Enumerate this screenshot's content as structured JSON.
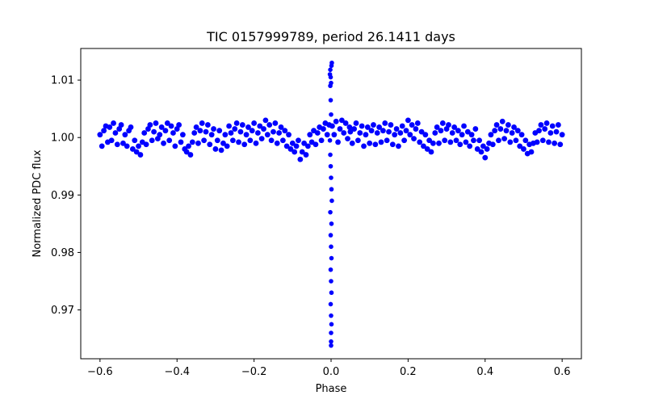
{
  "chart_data": {
    "type": "scatter",
    "title": "TIC 0157999789, period 26.1411 days",
    "xlabel": "Phase",
    "ylabel": "Normalized PDC flux",
    "xlim": [
      -0.65,
      0.65
    ],
    "ylim": [
      0.9615,
      1.0155
    ],
    "xticks": [
      -0.6,
      -0.4,
      -0.2,
      0.0,
      0.2,
      0.4,
      0.6
    ],
    "xtick_labels": [
      "−0.6",
      "−0.4",
      "−0.2",
      "0.0",
      "0.2",
      "0.4",
      "0.6"
    ],
    "yticks": [
      0.97,
      0.98,
      0.99,
      1.0,
      1.01
    ],
    "ytick_labels": [
      "0.97",
      "0.98",
      "0.99",
      "1.00",
      "1.01"
    ],
    "grid": false,
    "legend": "none",
    "marker_color": "#0000ff",
    "series": [
      {
        "points": [
          [
            -0.6,
            1.0005
          ],
          [
            -0.595,
            0.9985
          ],
          [
            -0.59,
            1.0012
          ],
          [
            -0.585,
            1.002
          ],
          [
            -0.58,
            0.9992
          ],
          [
            -0.575,
            1.0018
          ],
          [
            -0.57,
            0.9995
          ],
          [
            -0.565,
            1.0025
          ],
          [
            -0.56,
            1.0008
          ],
          [
            -0.555,
            0.9988
          ],
          [
            -0.55,
            1.0015
          ],
          [
            -0.545,
            1.0022
          ],
          [
            -0.54,
            0.999
          ],
          [
            -0.535,
            1.0005
          ],
          [
            -0.53,
            0.9985
          ],
          [
            -0.525,
            1.0012
          ],
          [
            -0.52,
            1.0018
          ],
          [
            -0.515,
            0.998
          ],
          [
            -0.51,
            0.9995
          ],
          [
            -0.505,
            0.9975
          ],
          [
            -0.5,
            0.9985
          ],
          [
            -0.495,
            0.997
          ],
          [
            -0.49,
            0.9992
          ],
          [
            -0.485,
            1.0008
          ],
          [
            -0.48,
            0.9988
          ],
          [
            -0.475,
            1.0015
          ],
          [
            -0.47,
            1.0022
          ],
          [
            -0.465,
            0.9995
          ],
          [
            -0.46,
            1.001
          ],
          [
            -0.455,
            1.0025
          ],
          [
            -0.45,
            0.9998
          ],
          [
            -0.445,
            1.0005
          ],
          [
            -0.44,
            1.0018
          ],
          [
            -0.435,
            0.999
          ],
          [
            -0.43,
            1.0012
          ],
          [
            -0.425,
            1.0025
          ],
          [
            -0.42,
            0.9995
          ],
          [
            -0.415,
            1.002
          ],
          [
            -0.41,
            1.0008
          ],
          [
            -0.405,
            0.9985
          ],
          [
            -0.4,
            1.0015
          ],
          [
            -0.395,
            1.0022
          ],
          [
            -0.39,
            0.9992
          ],
          [
            -0.385,
            1.0005
          ],
          [
            -0.38,
            0.998
          ],
          [
            -0.375,
            0.9975
          ],
          [
            -0.37,
            0.9985
          ],
          [
            -0.365,
            0.997
          ],
          [
            -0.36,
            0.9992
          ],
          [
            -0.355,
            1.0008
          ],
          [
            -0.35,
            1.0018
          ],
          [
            -0.345,
            0.999
          ],
          [
            -0.34,
            1.0012
          ],
          [
            -0.335,
            1.0025
          ],
          [
            -0.33,
            0.9995
          ],
          [
            -0.325,
            1.001
          ],
          [
            -0.32,
            1.0022
          ],
          [
            -0.315,
            0.9988
          ],
          [
            -0.31,
            1.0005
          ],
          [
            -0.305,
            1.0015
          ],
          [
            -0.3,
            0.998
          ],
          [
            -0.295,
            0.9995
          ],
          [
            -0.29,
            1.0012
          ],
          [
            -0.285,
            0.9978
          ],
          [
            -0.28,
            0.999
          ],
          [
            -0.275,
            1.0005
          ],
          [
            -0.27,
            0.9985
          ],
          [
            -0.265,
            1.002
          ],
          [
            -0.26,
            1.0008
          ],
          [
            -0.255,
            0.9995
          ],
          [
            -0.25,
            1.0015
          ],
          [
            -0.245,
            1.0025
          ],
          [
            -0.24,
            0.9992
          ],
          [
            -0.235,
            1.001
          ],
          [
            -0.23,
            1.0022
          ],
          [
            -0.225,
            0.9988
          ],
          [
            -0.22,
            1.0005
          ],
          [
            -0.215,
            1.0018
          ],
          [
            -0.21,
            0.9995
          ],
          [
            -0.205,
            1.0012
          ],
          [
            -0.2,
            1.0025
          ],
          [
            -0.195,
            0.999
          ],
          [
            -0.19,
            1.0008
          ],
          [
            -0.185,
            1.002
          ],
          [
            -0.18,
            0.9998
          ],
          [
            -0.175,
            1.0015
          ],
          [
            -0.17,
            1.003
          ],
          [
            -0.165,
            1.0005
          ],
          [
            -0.16,
            1.0022
          ],
          [
            -0.155,
            0.9995
          ],
          [
            -0.15,
            1.001
          ],
          [
            -0.145,
            1.0025
          ],
          [
            -0.14,
            0.999
          ],
          [
            -0.135,
            1.0008
          ],
          [
            -0.13,
            1.0018
          ],
          [
            -0.125,
            0.9995
          ],
          [
            -0.12,
            1.0012
          ],
          [
            -0.115,
            0.9985
          ],
          [
            -0.11,
            1.0005
          ],
          [
            -0.105,
            0.998
          ],
          [
            -0.1,
            0.999
          ],
          [
            -0.095,
            0.9975
          ],
          [
            -0.09,
            0.9985
          ],
          [
            -0.085,
            0.9995
          ],
          [
            -0.08,
            0.9962
          ],
          [
            -0.075,
            0.9975
          ],
          [
            -0.07,
            0.999
          ],
          [
            -0.065,
            0.997
          ],
          [
            -0.06,
            0.9985
          ],
          [
            -0.055,
            1.0005
          ],
          [
            -0.05,
            0.9992
          ],
          [
            -0.045,
            1.0012
          ],
          [
            -0.04,
            0.9988
          ],
          [
            -0.035,
            1.0008
          ],
          [
            -0.03,
            1.0018
          ],
          [
            -0.025,
            0.9995
          ],
          [
            -0.02,
            1.0015
          ],
          [
            -0.015,
            1.0025
          ],
          [
            -0.01,
            1.0005
          ],
          [
            -0.005,
            1.0022
          ],
          [
            0.003,
            1.002
          ],
          [
            0.008,
            1.0005
          ],
          [
            0.013,
            1.0028
          ],
          [
            0.018,
            0.9992
          ],
          [
            0.023,
            1.0015
          ],
          [
            0.028,
            1.003
          ],
          [
            0.033,
            1.0008
          ],
          [
            0.038,
            1.0025
          ],
          [
            0.043,
            0.9998
          ],
          [
            0.048,
            1.0018
          ],
          [
            0.05,
            1.001
          ],
          [
            0.055,
            0.999
          ],
          [
            0.06,
            1.0015
          ],
          [
            0.065,
            1.0025
          ],
          [
            0.07,
            0.9995
          ],
          [
            0.075,
            1.0008
          ],
          [
            0.08,
            1.002
          ],
          [
            0.085,
            0.9985
          ],
          [
            0.09,
            1.0005
          ],
          [
            0.095,
            1.0018
          ],
          [
            0.1,
            0.999
          ],
          [
            0.105,
            1.0012
          ],
          [
            0.11,
            1.0022
          ],
          [
            0.115,
            0.9988
          ],
          [
            0.12,
            1.0008
          ],
          [
            0.125,
            1.0018
          ],
          [
            0.13,
            0.9992
          ],
          [
            0.135,
            1.0012
          ],
          [
            0.14,
            1.0025
          ],
          [
            0.145,
            0.9995
          ],
          [
            0.15,
            1.001
          ],
          [
            0.155,
            1.0022
          ],
          [
            0.16,
            0.9988
          ],
          [
            0.165,
            1.0005
          ],
          [
            0.17,
            1.0015
          ],
          [
            0.175,
            0.9985
          ],
          [
            0.18,
            1.0008
          ],
          [
            0.185,
            1.002
          ],
          [
            0.19,
            0.9995
          ],
          [
            0.195,
            1.0012
          ],
          [
            0.2,
            1.003
          ],
          [
            0.205,
            1.0005
          ],
          [
            0.21,
            1.0022
          ],
          [
            0.215,
            0.9998
          ],
          [
            0.22,
            1.0015
          ],
          [
            0.225,
            1.0025
          ],
          [
            0.23,
            0.9992
          ],
          [
            0.235,
            1.001
          ],
          [
            0.24,
            0.9985
          ],
          [
            0.245,
            1.0005
          ],
          [
            0.25,
            0.998
          ],
          [
            0.255,
            0.9995
          ],
          [
            0.26,
            0.9975
          ],
          [
            0.265,
            0.999
          ],
          [
            0.27,
            1.0008
          ],
          [
            0.275,
            1.0018
          ],
          [
            0.28,
            0.999
          ],
          [
            0.285,
            1.0012
          ],
          [
            0.29,
            1.0025
          ],
          [
            0.295,
            0.9995
          ],
          [
            0.3,
            1.0015
          ],
          [
            0.305,
            1.0022
          ],
          [
            0.31,
            0.9992
          ],
          [
            0.315,
            1.0008
          ],
          [
            0.32,
            1.0018
          ],
          [
            0.325,
            0.9995
          ],
          [
            0.33,
            1.0012
          ],
          [
            0.335,
            0.9988
          ],
          [
            0.34,
            1.0005
          ],
          [
            0.345,
            1.002
          ],
          [
            0.35,
            0.9992
          ],
          [
            0.355,
            1.001
          ],
          [
            0.36,
            0.9985
          ],
          [
            0.365,
            1.0005
          ],
          [
            0.37,
            0.9995
          ],
          [
            0.375,
            1.0015
          ],
          [
            0.38,
            0.998
          ],
          [
            0.385,
            0.9995
          ],
          [
            0.39,
            0.9975
          ],
          [
            0.395,
            0.9985
          ],
          [
            0.4,
            0.9965
          ],
          [
            0.405,
            0.998
          ],
          [
            0.41,
            0.999
          ],
          [
            0.415,
            1.0005
          ],
          [
            0.42,
            0.9988
          ],
          [
            0.425,
            1.0012
          ],
          [
            0.43,
            1.0022
          ],
          [
            0.435,
            0.9995
          ],
          [
            0.44,
            1.0015
          ],
          [
            0.445,
            1.0028
          ],
          [
            0.45,
            0.9998
          ],
          [
            0.455,
            1.0012
          ],
          [
            0.46,
            1.0022
          ],
          [
            0.465,
            0.9992
          ],
          [
            0.47,
            1.0008
          ],
          [
            0.475,
            1.0018
          ],
          [
            0.48,
            0.9995
          ],
          [
            0.485,
            1.0012
          ],
          [
            0.49,
            0.9985
          ],
          [
            0.495,
            1.0005
          ],
          [
            0.5,
            0.998
          ],
          [
            0.505,
            0.9995
          ],
          [
            0.51,
            0.9972
          ],
          [
            0.515,
            0.9988
          ],
          [
            0.52,
            0.9975
          ],
          [
            0.525,
            0.999
          ],
          [
            0.53,
            1.0008
          ],
          [
            0.535,
            0.9992
          ],
          [
            0.54,
            1.0012
          ],
          [
            0.545,
            1.0022
          ],
          [
            0.55,
            0.9995
          ],
          [
            0.555,
            1.0015
          ],
          [
            0.56,
            1.0025
          ],
          [
            0.565,
            0.9992
          ],
          [
            0.57,
            1.0008
          ],
          [
            0.575,
            1.002
          ],
          [
            0.58,
            0.999
          ],
          [
            0.585,
            1.001
          ],
          [
            0.59,
            1.0022
          ],
          [
            0.595,
            0.9988
          ],
          [
            0.6,
            1.0005
          ]
        ]
      },
      {
        "points": [
          [
            -0.003,
            1.011
          ],
          [
            -0.002,
            1.009
          ],
          [
            -0.001,
            1.0065
          ],
          [
            0.0,
            1.004
          ],
          [
            0.001,
            1.002
          ],
          [
            0.002,
            1.013
          ],
          [
            -0.002,
            1.0118
          ],
          [
            0.001,
            1.0125
          ],
          [
            -0.001,
            1.0105
          ],
          [
            0.0,
            1.0095
          ],
          [
            -0.003,
            0.9995
          ],
          [
            -0.002,
            0.997
          ],
          [
            -0.001,
            0.995
          ],
          [
            0.0,
            0.993
          ],
          [
            0.001,
            0.991
          ],
          [
            0.002,
            0.989
          ],
          [
            -0.002,
            0.987
          ],
          [
            0.001,
            0.985
          ],
          [
            -0.001,
            0.983
          ],
          [
            0.0,
            0.981
          ],
          [
            0.001,
            0.979
          ],
          [
            -0.001,
            0.977
          ],
          [
            0.0,
            0.975
          ],
          [
            0.001,
            0.973
          ],
          [
            -0.001,
            0.971
          ],
          [
            0.0,
            0.969
          ],
          [
            0.001,
            0.9675
          ],
          [
            0.0,
            0.966
          ],
          [
            0.0,
            0.9645
          ],
          [
            0.0,
            0.9638
          ]
        ]
      }
    ]
  }
}
